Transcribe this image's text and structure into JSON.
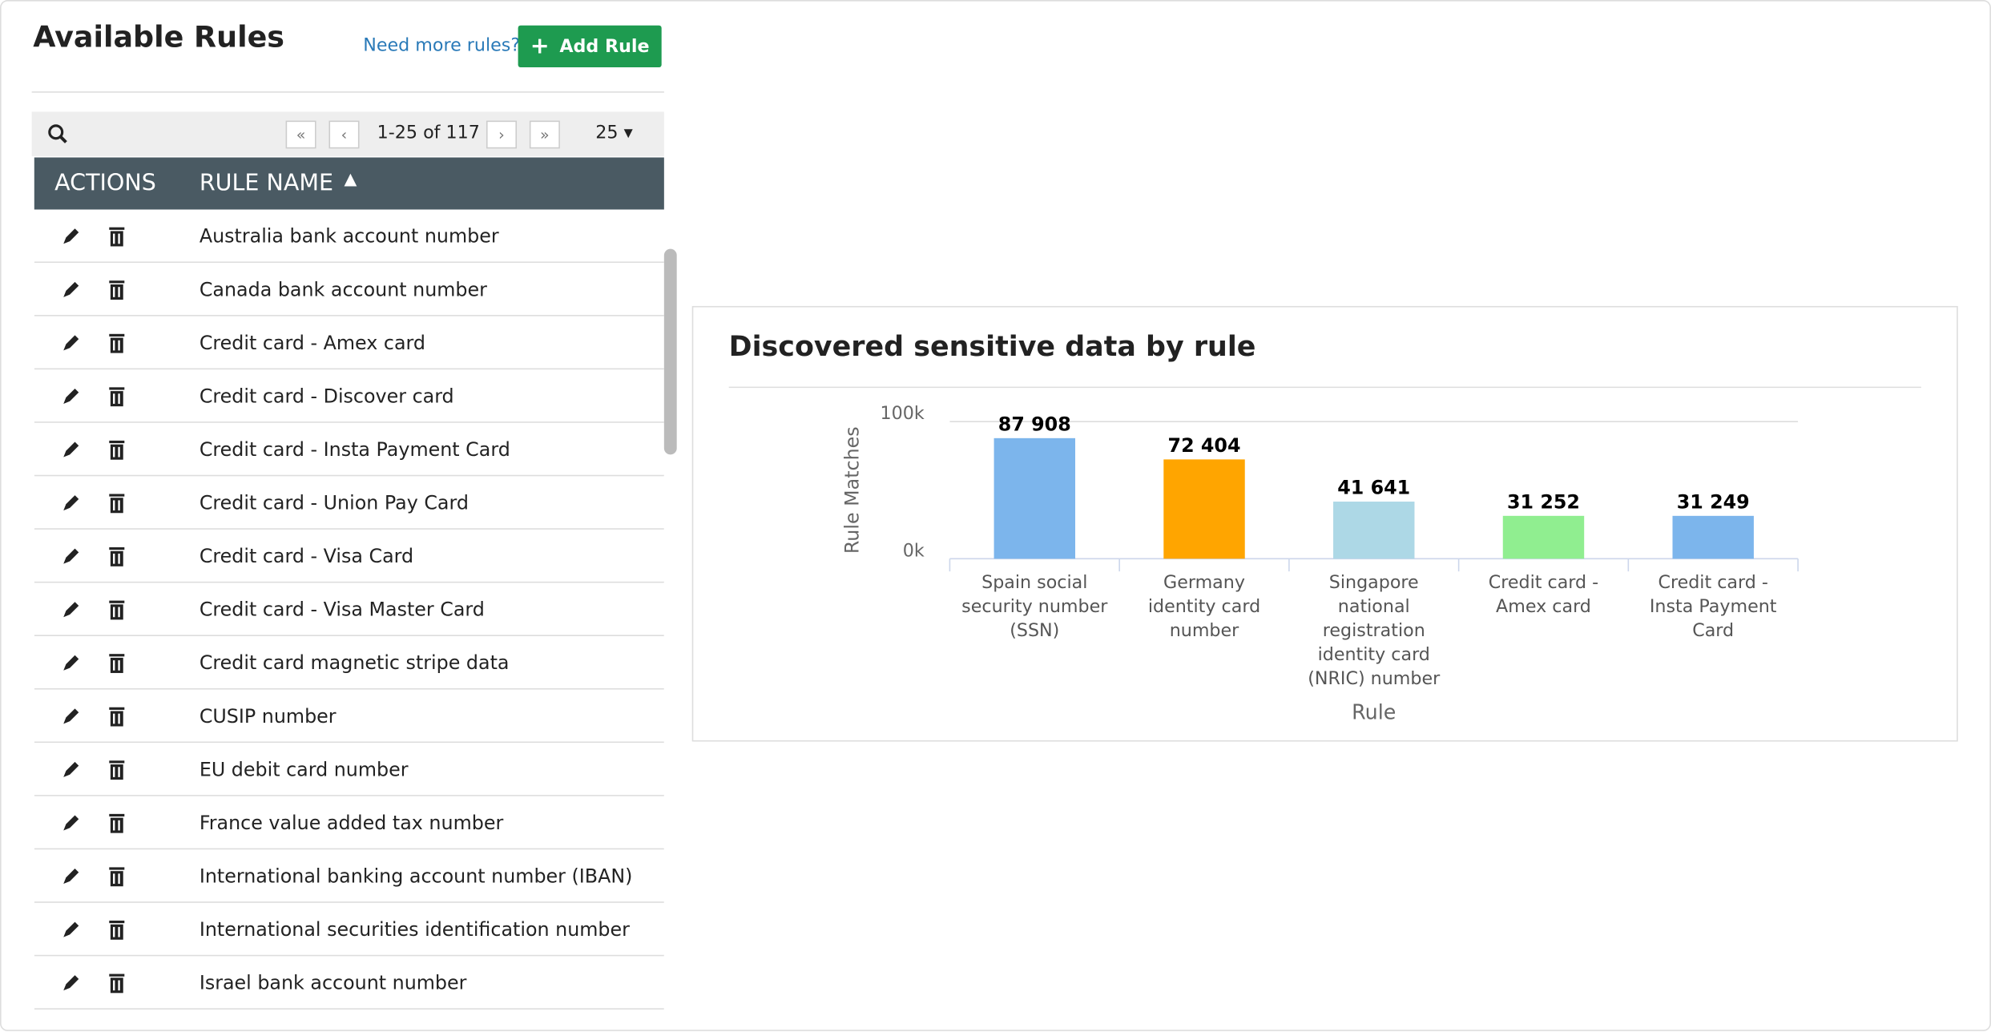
{
  "header": {
    "title": "Available Rules",
    "link": "Need more rules?",
    "button": "Add Rule"
  },
  "pager": {
    "range": "1-25 of 117",
    "page_size": "25"
  },
  "table": {
    "columns": [
      "ACTIONS",
      "RULE NAME"
    ],
    "rows": [
      "Australia bank account number",
      "Canada bank account number",
      "Credit card - Amex card",
      "Credit card - Discover card",
      "Credit card - Insta Payment Card",
      "Credit card - Union Pay Card",
      "Credit card - Visa Card",
      "Credit card - Visa Master Card",
      "Credit card magnetic stripe data",
      "CUSIP number",
      "EU debit card number",
      "France value added tax number",
      "International banking account number (IBAN)",
      "International securities identification number",
      "Israel bank account number"
    ]
  },
  "chart_data": {
    "type": "bar",
    "title": "Discovered sensitive data by rule",
    "x_label": "Rule",
    "y_label": "Rule Matches",
    "categories": [
      "Spain social security number (SSN)",
      "Germany identity card number",
      "Singapore national registration identity card (NRIC) number",
      "Credit card - Amex card",
      "Credit card - Insta Payment Card"
    ],
    "values": [
      87908,
      72404,
      41641,
      31252,
      31249
    ],
    "value_labels": [
      "87 908",
      "72 404",
      "41 641",
      "31 252",
      "31 249"
    ],
    "colors": [
      "#7cb5ec",
      "#ffa500",
      "#add8e6",
      "#90ee90",
      "#7cb5ec"
    ],
    "ylim": [
      0,
      100000
    ],
    "yticks": [
      {
        "value": 0,
        "label": "0k"
      },
      {
        "value": 100000,
        "label": "100k"
      }
    ]
  }
}
